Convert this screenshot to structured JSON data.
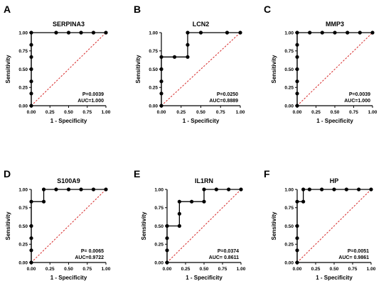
{
  "colors": {
    "roc_line": "#000000",
    "diagonal": "#d62828",
    "point": "#000000"
  },
  "chart_data": [
    {
      "type": "line",
      "panel": "A",
      "title": "SERPINA3",
      "xlabel": "1 - Specificity",
      "ylabel": "Sensitivity",
      "xlim": [
        0,
        1
      ],
      "ylim": [
        0,
        1
      ],
      "xticks": [
        "0.00",
        "0.25",
        "0.50",
        "0.75",
        "1.00"
      ],
      "yticks": [
        "0.00",
        "0.25",
        "0.50",
        "0.75",
        "1.00"
      ],
      "series": [
        {
          "x": [
            0,
            0,
            0,
            0,
            0,
            0,
            0,
            0.333,
            0.5,
            0.667,
            0.833,
            1.0
          ],
          "y": [
            0,
            0.167,
            0.333,
            0.5,
            0.667,
            0.833,
            1.0,
            1.0,
            1.0,
            1.0,
            1.0,
            1.0
          ]
        }
      ],
      "diagonal": true,
      "annotations": [
        "P=0.0039",
        "AUC=1.000"
      ]
    },
    {
      "type": "line",
      "panel": "B",
      "title": "LCN2",
      "xlabel": "1 - Specificity",
      "ylabel": "Sensitivity",
      "xlim": [
        0,
        1
      ],
      "ylim": [
        0,
        1
      ],
      "xticks": [
        "0.00",
        "0.25",
        "0.50",
        "0.75",
        "1.00"
      ],
      "yticks": [
        "0.00",
        "0.25",
        "0.50",
        "0.75",
        "1.00"
      ],
      "series": [
        {
          "x": [
            0,
            0,
            0,
            0,
            0,
            0.167,
            0.333,
            0.333,
            0.333,
            0.5,
            0.833,
            1.0
          ],
          "y": [
            0,
            0.167,
            0.333,
            0.5,
            0.667,
            0.667,
            0.667,
            0.833,
            1.0,
            1.0,
            1.0,
            1.0
          ]
        }
      ],
      "diagonal": true,
      "annotations": [
        "P=0.0250",
        "AUC=0.8889"
      ]
    },
    {
      "type": "line",
      "panel": "C",
      "title": "MMP3",
      "xlabel": "1 - Specificity",
      "ylabel": "Sensitivity",
      "xlim": [
        0,
        1
      ],
      "ylim": [
        0,
        1
      ],
      "xticks": [
        "0.00",
        "0.25",
        "0.50",
        "0.75",
        "1.00"
      ],
      "yticks": [
        "0.00",
        "0.25",
        "0.50",
        "0.75",
        "1.00"
      ],
      "series": [
        {
          "x": [
            0,
            0,
            0,
            0,
            0,
            0,
            0,
            0.167,
            0.333,
            0.5,
            0.667,
            0.833,
            1.0
          ],
          "y": [
            0,
            0.167,
            0.333,
            0.5,
            0.667,
            0.833,
            1.0,
            1.0,
            1.0,
            1.0,
            1.0,
            1.0,
            1.0
          ]
        }
      ],
      "diagonal": true,
      "annotations": [
        "P=0.0039",
        "AUC=1.000"
      ]
    },
    {
      "type": "line",
      "panel": "D",
      "title": "S100A9",
      "xlabel": "1 - Specificity",
      "ylabel": "Sensitivity",
      "xlim": [
        0,
        1
      ],
      "ylim": [
        0,
        1
      ],
      "xticks": [
        "0.00",
        "0.25",
        "0.50",
        "0.75",
        "1.00"
      ],
      "yticks": [
        "0.00",
        "0.25",
        "0.50",
        "0.75",
        "1.00"
      ],
      "series": [
        {
          "x": [
            0,
            0,
            0,
            0,
            0,
            0.167,
            0.167,
            0.333,
            0.5,
            0.667,
            0.833,
            1.0
          ],
          "y": [
            0,
            0.167,
            0.333,
            0.5,
            0.833,
            0.833,
            1.0,
            1.0,
            1.0,
            1.0,
            1.0,
            1.0
          ]
        }
      ],
      "diagonal": true,
      "annotations": [
        "P= 0.0065",
        "AUC=0.9722"
      ]
    },
    {
      "type": "line",
      "panel": "E",
      "title": "IL1RN",
      "xlabel": "1 - Specificity",
      "ylabel": "Sensitivity",
      "xlim": [
        0,
        1
      ],
      "ylim": [
        0,
        1
      ],
      "xticks": [
        "0.00",
        "0.25",
        "0.50",
        "0.75",
        "1.00"
      ],
      "yticks": [
        "0.00",
        "0.25",
        "0.50",
        "0.75",
        "1.00"
      ],
      "series": [
        {
          "x": [
            0,
            0,
            0,
            0,
            0.167,
            0.167,
            0.167,
            0.333,
            0.5,
            0.5,
            0.667,
            0.833,
            1.0
          ],
          "y": [
            0,
            0.167,
            0.333,
            0.5,
            0.5,
            0.667,
            0.833,
            0.833,
            0.833,
            1.0,
            1.0,
            1.0,
            1.0
          ]
        }
      ],
      "diagonal": true,
      "annotations": [
        "P=0.0374",
        "AUC= 0.8611"
      ]
    },
    {
      "type": "line",
      "panel": "F",
      "title": "HP",
      "xlabel": "1 - Specificity",
      "ylabel": "Sensitivity",
      "xlim": [
        0,
        1
      ],
      "ylim": [
        0,
        1
      ],
      "xticks": [
        "0.00",
        "0.25",
        "0.50",
        "0.75",
        "1.00"
      ],
      "yticks": [
        "0.00",
        "0.25",
        "0.50",
        "0.75",
        "1.00"
      ],
      "series": [
        {
          "x": [
            0,
            0,
            0,
            0,
            0,
            0.083,
            0.083,
            0.167,
            0.333,
            0.5,
            0.667,
            0.833,
            1.0
          ],
          "y": [
            0,
            0.167,
            0.333,
            0.5,
            0.833,
            0.833,
            1.0,
            1.0,
            1.0,
            1.0,
            1.0,
            1.0,
            1.0
          ]
        }
      ],
      "diagonal": true,
      "annotations": [
        "P=0.0051",
        "AUC= 0.9861"
      ]
    }
  ]
}
